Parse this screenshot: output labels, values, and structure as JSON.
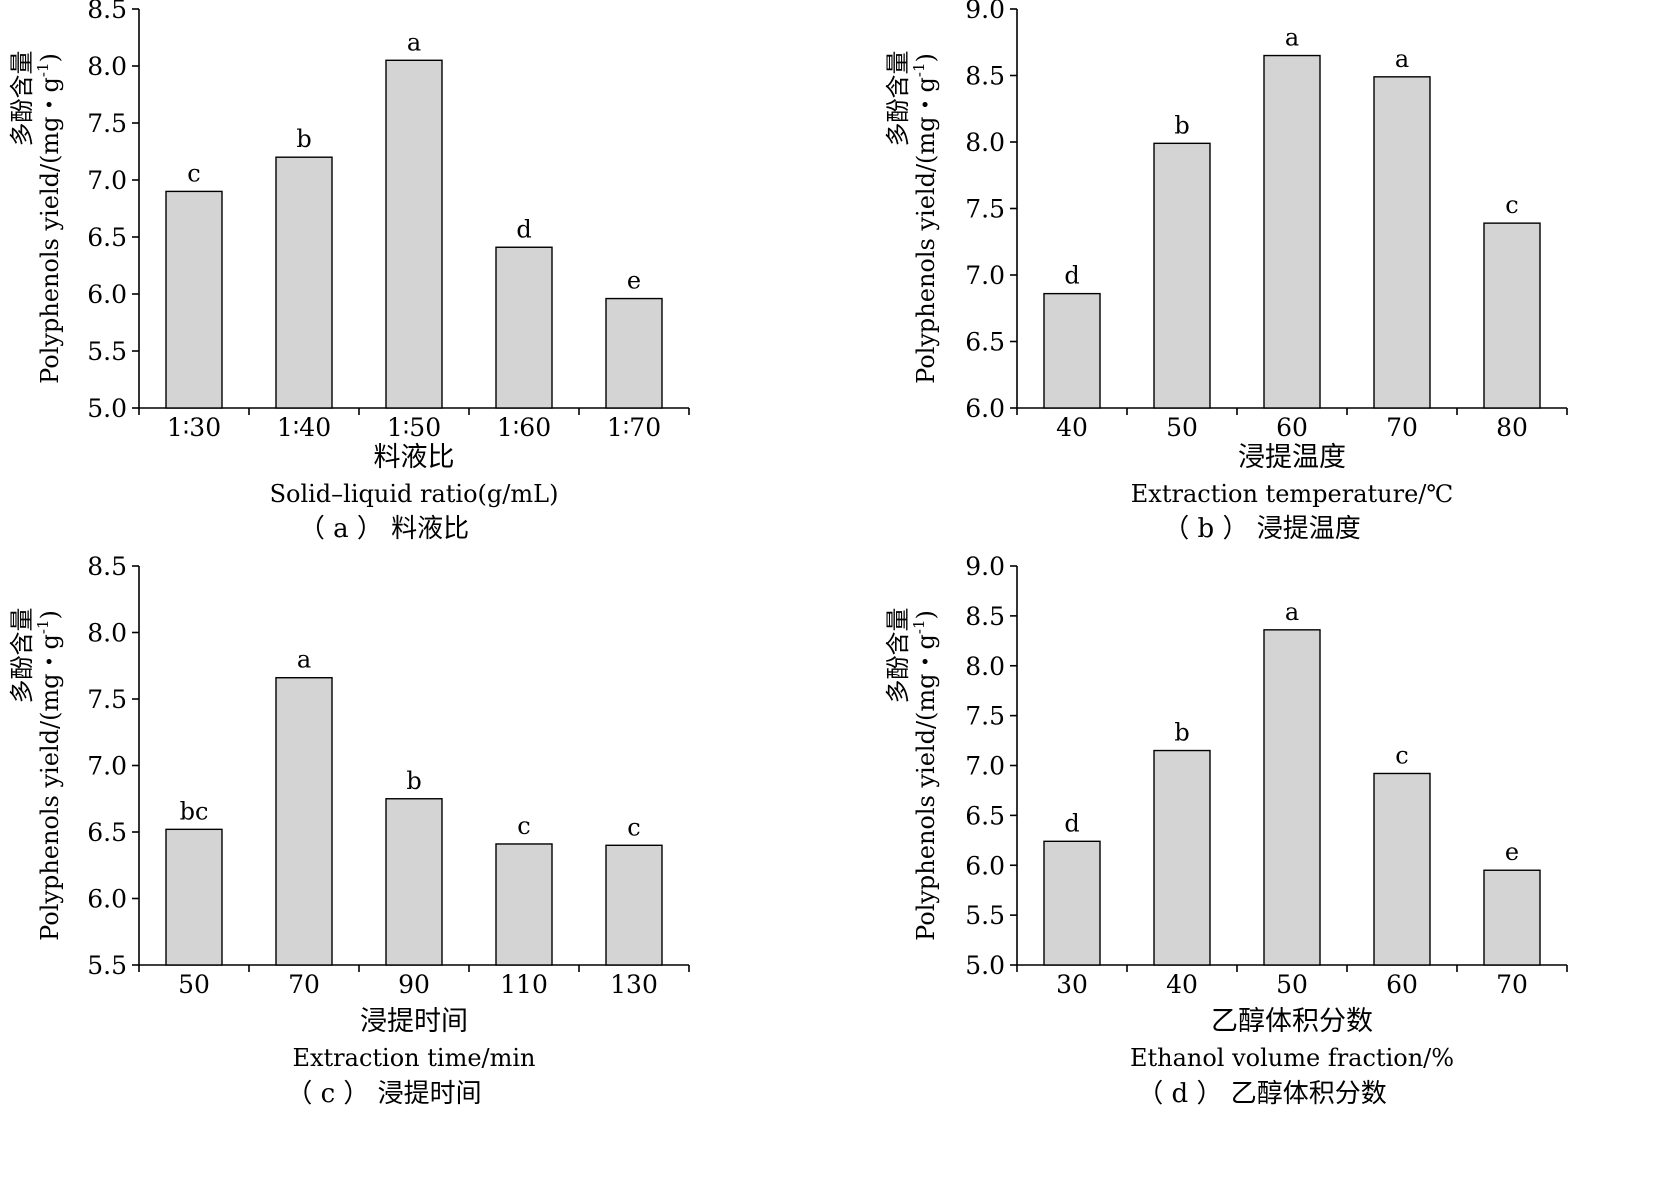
{
  "chart_data": [
    {
      "type": "bar",
      "categories": [
        "1∶30",
        "1∶40",
        "1∶50",
        "1∶60",
        "1∶70"
      ],
      "values": [
        6.9,
        7.2,
        8.05,
        6.41,
        5.96
      ],
      "labels": [
        "c",
        "b",
        "a",
        "d",
        "e"
      ],
      "ylim": [
        5.0,
        8.5
      ],
      "yticks": [
        "5.0",
        "5.5",
        "6.0",
        "6.5",
        "7.0",
        "7.5",
        "8.0",
        "8.5"
      ],
      "ylabel_cn": "多酚含量",
      "ylabel_en": "Polyphenols yield/(mg・g",
      "ylabel_sup": "-1",
      "ylabel_close": ")",
      "xlabel_cn": "料液比",
      "xlabel_en": "Solid–liquid ratio(g/mL)",
      "caption": "（ a ） 料液比"
    },
    {
      "type": "bar",
      "categories": [
        "40",
        "50",
        "60",
        "70",
        "80"
      ],
      "values": [
        6.86,
        7.99,
        8.65,
        8.49,
        7.39
      ],
      "labels": [
        "d",
        "b",
        "a",
        "a",
        "c"
      ],
      "ylim": [
        6.0,
        9.0
      ],
      "yticks": [
        "6.0",
        "6.5",
        "7.0",
        "7.5",
        "8.0",
        "8.5",
        "9.0"
      ],
      "ylabel_cn": "多酚含量",
      "ylabel_en": "Polyphenols yield/(mg・g",
      "ylabel_sup": "-1",
      "ylabel_close": ")",
      "xlabel_cn": "浸提温度",
      "xlabel_en": "Extraction temperature/℃",
      "caption": "（ b ） 浸提温度"
    },
    {
      "type": "bar",
      "categories": [
        "50",
        "70",
        "90",
        "110",
        "130"
      ],
      "values": [
        6.52,
        7.66,
        6.75,
        6.41,
        6.4
      ],
      "labels": [
        "bc",
        "a",
        "b",
        "c",
        "c"
      ],
      "ylim": [
        5.5,
        8.5
      ],
      "yticks": [
        "5.5",
        "6.0",
        "6.5",
        "7.0",
        "7.5",
        "8.0",
        "8.5"
      ],
      "ylabel_cn": "多酚含量",
      "ylabel_en": "Polyphenols yield/(mg・g",
      "ylabel_sup": "-1",
      "ylabel_close": ")",
      "xlabel_cn": "浸提时间",
      "xlabel_en": "Extraction time/min",
      "caption": "（ c ） 浸提时间"
    },
    {
      "type": "bar",
      "categories": [
        "30",
        "40",
        "50",
        "60",
        "70"
      ],
      "values": [
        6.24,
        7.15,
        8.36,
        6.92,
        5.95
      ],
      "labels": [
        "d",
        "b",
        "a",
        "c",
        "e"
      ],
      "ylim": [
        5.0,
        9.0
      ],
      "yticks": [
        "5.0",
        "5.5",
        "6.0",
        "6.5",
        "7.0",
        "7.5",
        "8.0",
        "8.5",
        "9.0"
      ],
      "ylabel_cn": "多酚含量",
      "ylabel_en": "Polyphenols yield/(mg・g",
      "ylabel_sup": "-1",
      "ylabel_close": ")",
      "xlabel_cn": "乙醇体积分数",
      "xlabel_en": "Ethanol volume fraction/%",
      "caption": "（ d ） 乙醇体积分数"
    }
  ]
}
